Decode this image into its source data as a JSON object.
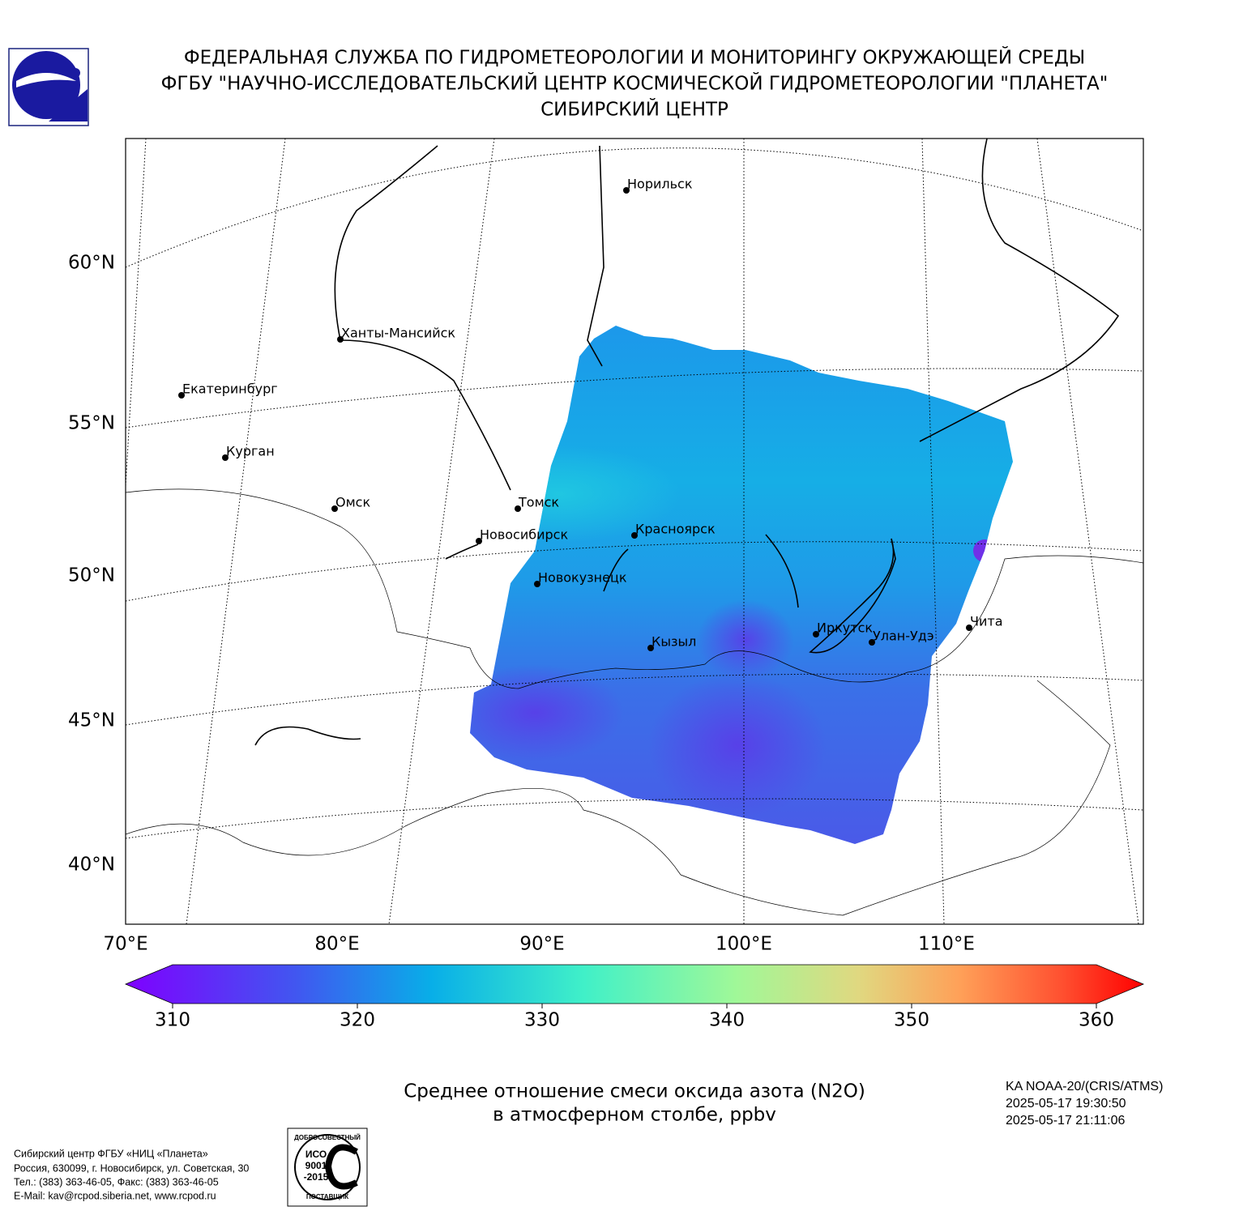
{
  "header": {
    "lines": [
      "ФЕДЕРАЛЬНАЯ СЛУЖБА ПО ГИДРОМЕТЕОРОЛОГИИ И МОНИТОРИНГУ ОКРУЖАЮЩЕЙ СРЕДЫ",
      "ФГБУ \"НАУЧНО-ИССЛЕДОВАТЕЛЬСКИЙ ЦЕНТР КОСМИЧЕСКОЙ ГИДРОМЕТЕОРОЛОГИИ \"ПЛАНЕТА\"",
      "СИБИРСКИЙ ЦЕНТР"
    ]
  },
  "map": {
    "lat_labels": [
      "60°N",
      "55°N",
      "50°N",
      "45°N",
      "40°N"
    ],
    "lon_labels": [
      "70°E",
      "80°E",
      "90°E",
      "100°E",
      "110°E"
    ],
    "cities": [
      "Норильск",
      "Ханты-Мансийск",
      "Екатеринбург",
      "Курган",
      "Омск",
      "Томск",
      "Новосибирск",
      "Красноярск",
      "Новокузнецк",
      "Иркутск",
      "Кызыл",
      "Улан-Удэ",
      "Чита"
    ]
  },
  "colorbar": {
    "range": [
      310,
      360
    ],
    "ticks": [
      310,
      320,
      330,
      340,
      350,
      360
    ]
  },
  "caption": {
    "lines": [
      "Среднее отношение смеси оксида азота (N2O)",
      "в атмосферном столбе, ppbv"
    ]
  },
  "satellite": {
    "lines": [
      "KA NOAA-20/(CRIS/ATMS)",
      "2025-05-17 19:30:50",
      "2025-05-17 21:11:06"
    ]
  },
  "footer": {
    "lines": [
      "Сибирский центр ФГБУ «НИЦ «Планета»",
      "Россия, 630099, г. Новосибирск, ул. Советская, 30",
      "Тел.: (383) 363-46-05, Факс: (383) 363-46-05",
      "E-Mail: kav@rcpod.siberia.net, www.rcpod.ru"
    ]
  },
  "certificate": {
    "top": "ДОБРОСОВЕСТНЫЙ",
    "lines": [
      "ИСО",
      "9001",
      "-2015"
    ],
    "bottom": "ПОСТАВЩИК"
  }
}
